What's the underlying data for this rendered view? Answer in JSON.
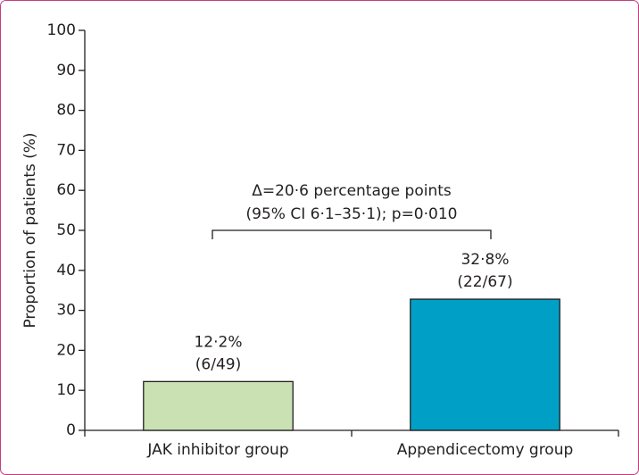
{
  "chart_data": {
    "type": "bar",
    "y_label": "Proportion of patients (%)",
    "categories": [
      "JAK inhibitor group",
      "Appendicectomy group"
    ],
    "values": [
      12.2,
      32.8
    ],
    "value_labels": [
      "12·2%",
      "32·8%"
    ],
    "count_labels": [
      "(6/49)",
      "(22/67)"
    ],
    "colors": [
      "#c9e1b3",
      "#009fc6"
    ],
    "annotation": [
      "Δ=20·6 percentage points",
      "(95% CI 6·1–35·1); p=0·010"
    ],
    "ylim": [
      0,
      100
    ],
    "yticks": [
      0,
      10,
      20,
      30,
      40,
      50,
      60,
      70,
      80,
      90,
      100
    ]
  }
}
